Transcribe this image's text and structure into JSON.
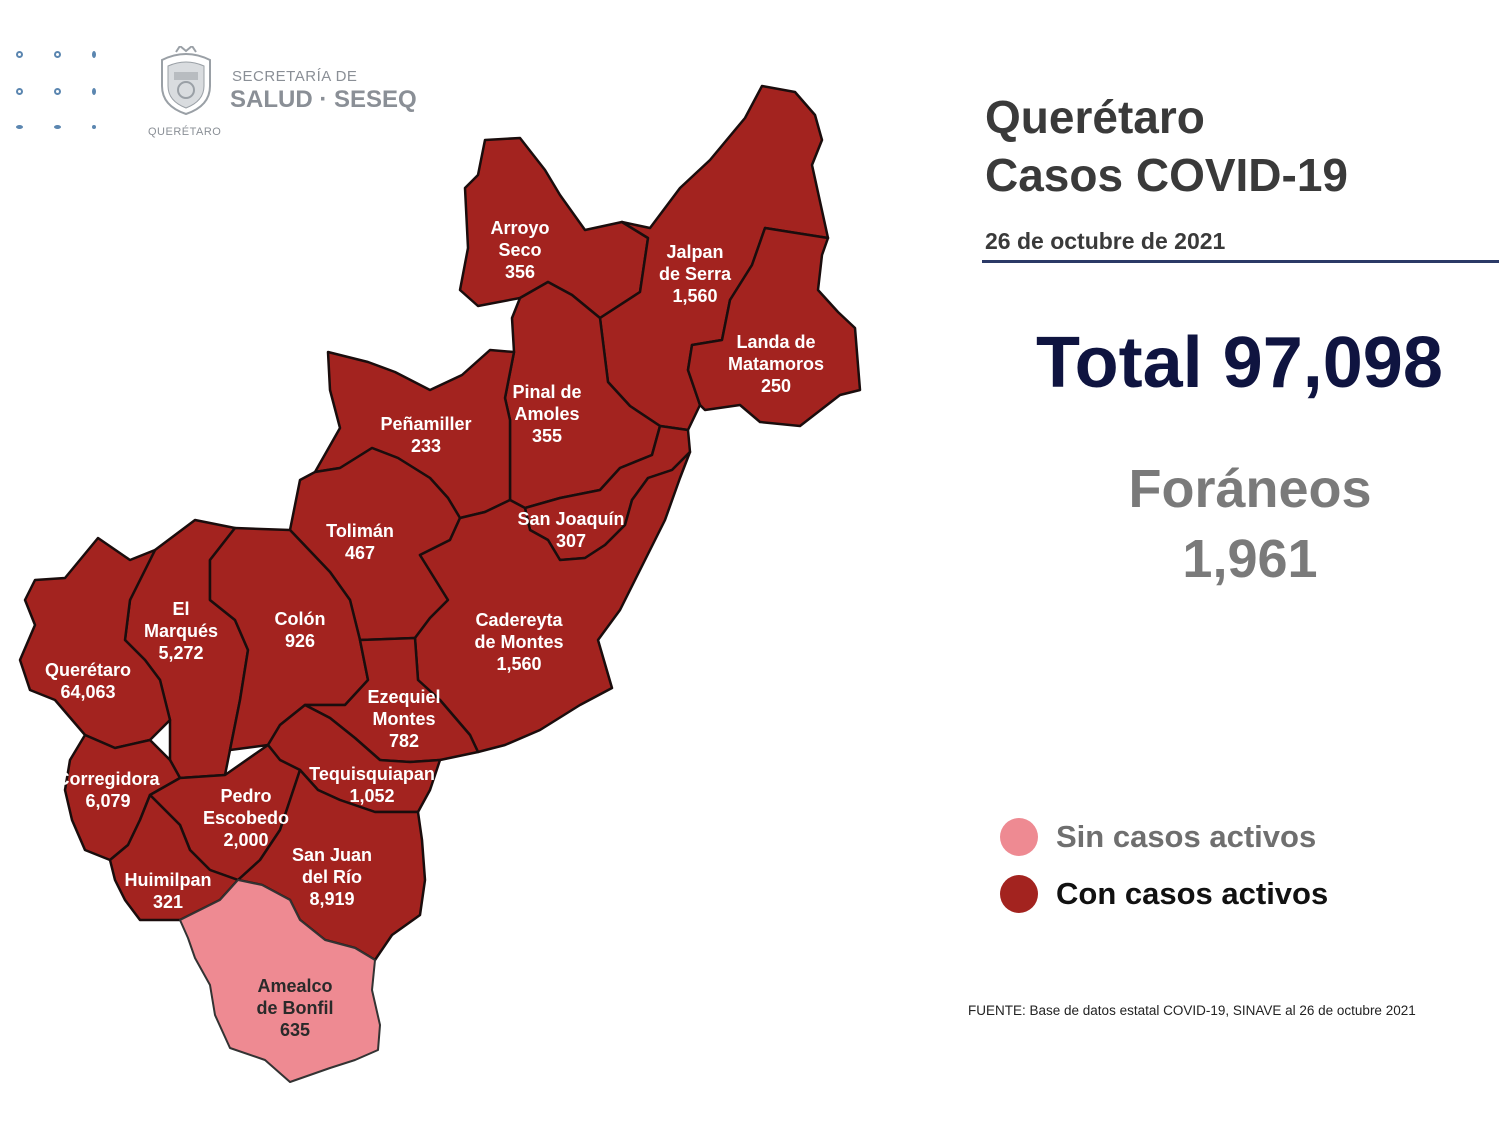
{
  "header": {
    "logo_line1": "SECRETARÍA DE",
    "logo_line2": "SALUD · SESEQ",
    "logo_caption": "QUERÉTARO"
  },
  "title": {
    "line1": "Querétaro",
    "line2": "Casos COVID-19"
  },
  "date": "26 de octubre de 2021",
  "total_label": "Total 97,098",
  "foraneos": {
    "label": "Foráneos",
    "value": "1,961"
  },
  "legend": {
    "sin_casos": "Sin casos activos",
    "con_casos": "Con casos activos"
  },
  "source": "FUENTE: Base de datos estatal COVID-19, SINAVE al 26 de octubre 2021",
  "colors": {
    "active": "#a3231f",
    "inactive": "#ee8a92",
    "border": "#1a0d0d",
    "title_text": "#3a3a3a",
    "total_text": "#0f1440",
    "grey_text": "#7a7a7a",
    "date_rule": "#2b3a67"
  },
  "municipalities": [
    {
      "id": "arroyo-seco",
      "lines": [
        "Arroyo",
        "Seco",
        "356"
      ],
      "active": true
    },
    {
      "id": "jalpan-de-serra",
      "lines": [
        "Jalpan",
        "de Serra",
        "1,560"
      ],
      "active": true
    },
    {
      "id": "landa-de-matamoros",
      "lines": [
        "Landa de",
        "Matamoros",
        "250"
      ],
      "active": true
    },
    {
      "id": "pinal-de-amoles",
      "lines": [
        "Pinal de",
        "Amoles",
        "355"
      ],
      "active": true
    },
    {
      "id": "penamiller",
      "lines": [
        "Peñamiller",
        "233"
      ],
      "active": true
    },
    {
      "id": "san-joaquin",
      "lines": [
        "San Joaquín",
        "307"
      ],
      "active": true
    },
    {
      "id": "toliman",
      "lines": [
        "Tolimán",
        "467"
      ],
      "active": true
    },
    {
      "id": "cadereyta-de-montes",
      "lines": [
        "Cadereyta",
        "de Montes",
        "1,560"
      ],
      "active": true
    },
    {
      "id": "el-marques",
      "lines": [
        "El",
        "Marqués",
        "5,272"
      ],
      "active": true
    },
    {
      "id": "colon",
      "lines": [
        "Colón",
        "926"
      ],
      "active": true
    },
    {
      "id": "queretaro",
      "lines": [
        "Querétaro",
        "64,063"
      ],
      "active": true
    },
    {
      "id": "ezequiel-montes",
      "lines": [
        "Ezequiel",
        "Montes",
        "782"
      ],
      "active": true
    },
    {
      "id": "corregidora",
      "lines": [
        "Corregidora",
        "6,079"
      ],
      "active": true
    },
    {
      "id": "tequisquiapan",
      "lines": [
        "Tequisquiapan",
        "1,052"
      ],
      "active": true
    },
    {
      "id": "pedro-escobedo",
      "lines": [
        "Pedro",
        "Escobedo",
        "2,000"
      ],
      "active": true
    },
    {
      "id": "san-juan-del-rio",
      "lines": [
        "San Juan",
        "del Río",
        "8,919"
      ],
      "active": true
    },
    {
      "id": "huimilpan",
      "lines": [
        "Huimilpan",
        "321"
      ],
      "active": true
    },
    {
      "id": "amealco-de-bonfil",
      "lines": [
        "Amealco",
        "de Bonfil",
        "635"
      ],
      "active": false
    }
  ]
}
